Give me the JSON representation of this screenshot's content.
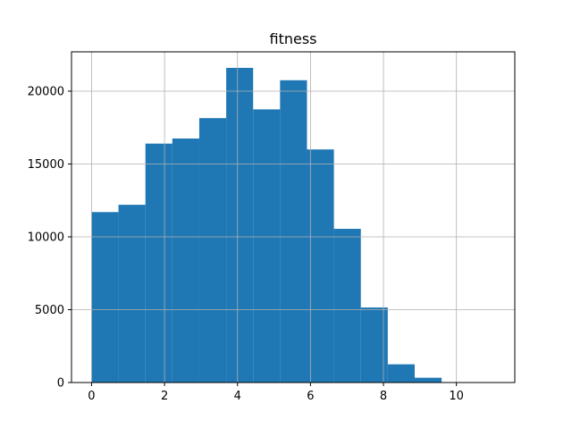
{
  "chart_data": {
    "type": "bar",
    "title": "fitness",
    "xlabel": "",
    "ylabel": "",
    "bin_edges": [
      0.0,
      0.738,
      1.476,
      2.214,
      2.952,
      3.69,
      4.428,
      5.166,
      5.904,
      6.642,
      7.38,
      8.118,
      8.856,
      9.594,
      10.332,
      11.07
    ],
    "values": [
      11700,
      12200,
      16400,
      16750,
      18150,
      21600,
      18750,
      20750,
      16000,
      10550,
      5150,
      1250,
      330,
      20,
      5
    ],
    "xlim": [
      -0.55,
      11.6
    ],
    "ylim": [
      0,
      22700
    ],
    "xticks": [
      0,
      2,
      4,
      6,
      8,
      10
    ],
    "xtick_labels": [
      "0",
      "2",
      "4",
      "6",
      "8",
      "10"
    ],
    "yticks": [
      0,
      5000,
      10000,
      15000,
      20000
    ],
    "ytick_labels": [
      "0",
      "5000",
      "10000",
      "15000",
      "20000"
    ],
    "grid": true,
    "bar_color": "#1f77b4",
    "grid_color": "#b0b0b0"
  }
}
